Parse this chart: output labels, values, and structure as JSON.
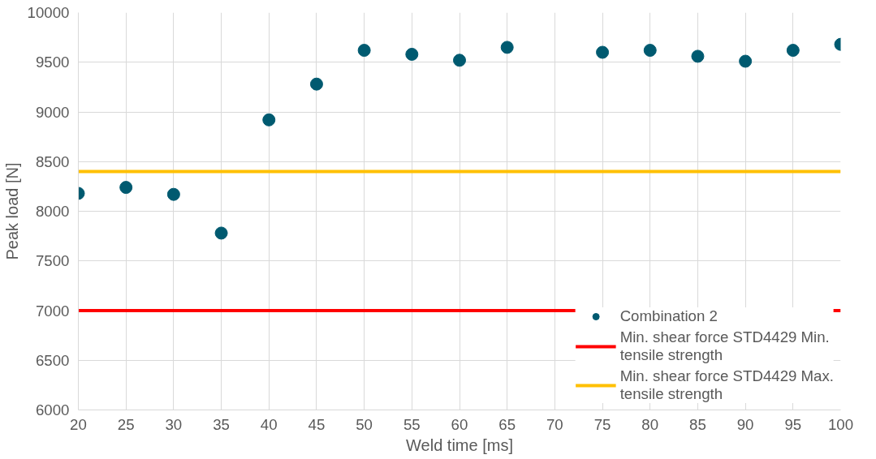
{
  "chart_data": {
    "type": "scatter",
    "xlabel": "Weld time [ms]",
    "ylabel": "Peak load [N]",
    "x": [
      20,
      25,
      30,
      35,
      40,
      45,
      50,
      55,
      60,
      65,
      75,
      80,
      85,
      90,
      95,
      100
    ],
    "series": [
      {
        "name": "Combination 2",
        "color": "#005a70",
        "values": [
          8180,
          8240,
          8170,
          7780,
          8920,
          9280,
          9620,
          9580,
          9520,
          9650,
          9600,
          9620,
          9560,
          9510,
          9620,
          9680
        ]
      }
    ],
    "ref_lines": [
      {
        "axis": "y",
        "value": 7000,
        "label": "Min. shear force STD4429 Min. tensile strength",
        "color": "#ff0000"
      },
      {
        "axis": "y",
        "value": 8400,
        "label": "Min. shear force STD4429 Max. tensile strength",
        "color": "#ffc000"
      }
    ],
    "xlim": [
      20,
      100
    ],
    "xticks": [
      20,
      25,
      30,
      35,
      40,
      45,
      50,
      55,
      60,
      65,
      70,
      75,
      80,
      85,
      90,
      95,
      100
    ],
    "ylim": [
      6000,
      10000
    ],
    "yticks": [
      6000,
      6500,
      7000,
      7500,
      8000,
      8500,
      9000,
      9500,
      10000
    ],
    "grid": true,
    "legend": "bottom right",
    "marker": "circle"
  }
}
